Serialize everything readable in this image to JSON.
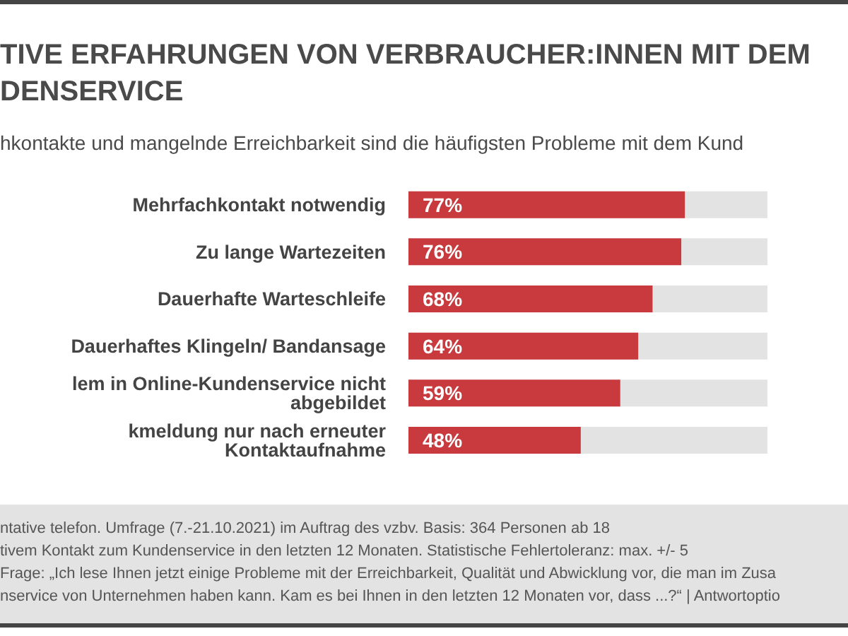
{
  "chart_data": {
    "type": "bar",
    "orientation": "horizontal",
    "title": "TIVE ERFAHRUNGEN VON VERBRAUCHER:INNEN MIT DEM\nDENSERVICE",
    "subtitle": "hkontakte und mangelnde Erreichbarkeit sind die häufigsten Probleme mit dem Kund",
    "categories": [
      "Mehrfachkontakt notwendig",
      "Zu lange Wartezeiten",
      "Dauerhafte Warteschleife",
      "Dauerhaftes Klingeln/ Bandansage",
      "lem in Online-Kundenservice nicht abgebildet",
      "kmeldung nur nach erneuter Kontaktaufnahme"
    ],
    "values": [
      77,
      76,
      68,
      64,
      59,
      48
    ],
    "value_labels": [
      "77%",
      "76%",
      "68%",
      "64%",
      "59%",
      "48%"
    ],
    "color": "#c83a3d",
    "xlim": [
      0,
      100
    ],
    "tick_labels": "y",
    "annotations": [
      "ntative telefon. Umfrage (7.-21.10.2021) im Auftrag des vzbv. Basis: 364 Personen ab 18",
      "tivem Kontakt zum Kundenservice in den letzten 12 Monaten. Statistische Fehlertoleranz: max. +/- 5",
      "Frage: „Ich lese Ihnen jetzt einige Probleme mit der Erreichbarkeit, Qualität und Abwicklung vor, die man im Zusa",
      "nservice von Unternehmen haben kann. Kam es bei Ihnen in den letzten 12 Monaten vor, dass ...?“ | Antwortoptio"
    ]
  }
}
